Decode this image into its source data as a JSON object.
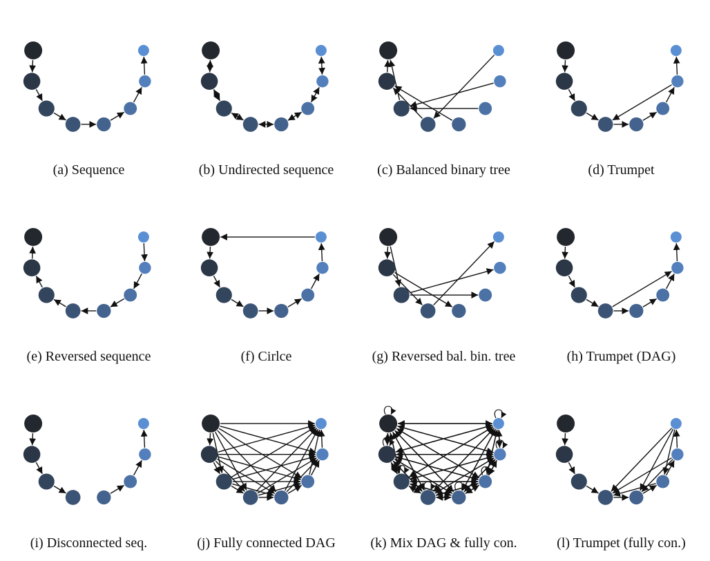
{
  "figure": {
    "panels": [
      {
        "label": "(a)",
        "title": "Sequence",
        "type": "sequence",
        "self_loops": false,
        "node_color": "#5b8fd4"
      },
      {
        "label": "(b)",
        "title": "Undirected sequence",
        "type": "undirected_sequence",
        "self_loops": false,
        "node_color": "#5b8fd4"
      },
      {
        "label": "(c)",
        "title": "Balanced binary tree",
        "type": "balanced_binary_tree",
        "self_loops": false,
        "node_color": "#5b8fd4"
      },
      {
        "label": "(d)",
        "title": "Trumpet",
        "type": "trumpet",
        "self_loops": false,
        "node_color": "#5b8fd4"
      },
      {
        "label": "(e)",
        "title": "Reversed sequence",
        "type": "reversed_sequence",
        "self_loops": false,
        "node_color": "#5b8fd4"
      },
      {
        "label": "(f)",
        "title": "Cirlce",
        "type": "circle",
        "self_loops": false,
        "node_color": "#5b8fd4"
      },
      {
        "label": "(g)",
        "title": "Reversed bal. bin. tree",
        "type": "reversed_balanced_binary_tree",
        "self_loops": false,
        "node_color": "#5b8fd4"
      },
      {
        "label": "(h)",
        "title": "Trumpet (DAG)",
        "type": "trumpet_dag",
        "self_loops": false,
        "node_color": "#5b8fd4"
      },
      {
        "label": "(i)",
        "title": "Disconnected seq.",
        "type": "disconnected_sequence",
        "self_loops": false,
        "node_color": "#5b8fd4"
      },
      {
        "label": "(j)",
        "title": "Fully connected DAG",
        "type": "fully_connected_dag",
        "self_loops": false,
        "node_color": "#5b8fd4"
      },
      {
        "label": "(k)",
        "title": "Mix DAG & fully con.",
        "type": "mix_dag_fully_connected",
        "self_loops": true,
        "node_color": "#5b8fd4"
      },
      {
        "label": "(l)",
        "title": "Trumpet (fully con.)",
        "type": "trumpet_fully_connected",
        "self_loops": false,
        "node_color": "#5b8fd4"
      }
    ]
  }
}
